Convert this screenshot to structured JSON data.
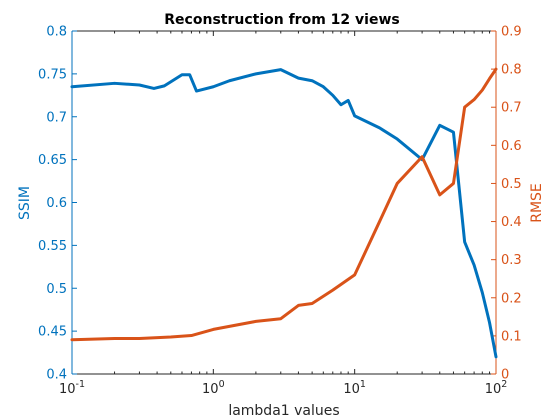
{
  "chart_data": {
    "type": "line",
    "title": "Reconstruction from 12 views",
    "xlabel": "lambda1 values",
    "x_scale": "log",
    "xlim": [
      0.1,
      100
    ],
    "x_ticks": [
      {
        "value": 0.1,
        "base": "10",
        "exp": "-1"
      },
      {
        "value": 1,
        "base": "10",
        "exp": "0"
      },
      {
        "value": 10,
        "base": "10",
        "exp": "1"
      },
      {
        "value": 100,
        "base": "10",
        "exp": "2"
      }
    ],
    "y_left": {
      "label": "SSIM",
      "lim": [
        0.4,
        0.8
      ],
      "ticks": [
        "0.4",
        "0.45",
        "0.5",
        "0.55",
        "0.6",
        "0.65",
        "0.7",
        "0.75",
        "0.8"
      ],
      "color": "#0072BD"
    },
    "y_right": {
      "label": "RMSE",
      "lim": [
        0,
        0.9
      ],
      "ticks": [
        "0",
        "0.1",
        "0.2",
        "0.3",
        "0.4",
        "0.5",
        "0.6",
        "0.7",
        "0.8",
        "0.9"
      ],
      "color": "#D95319"
    },
    "series": [
      {
        "axis": "left",
        "color": "#0072BD",
        "points": [
          [
            0.1,
            0.735
          ],
          [
            0.2,
            0.739
          ],
          [
            0.3,
            0.737
          ],
          [
            0.38,
            0.733
          ],
          [
            0.45,
            0.736
          ],
          [
            0.55,
            0.745
          ],
          [
            0.6,
            0.749
          ],
          [
            0.68,
            0.749
          ],
          [
            0.76,
            0.73
          ],
          [
            1.0,
            0.735
          ],
          [
            1.3,
            0.742
          ],
          [
            2.0,
            0.75
          ],
          [
            3.0,
            0.755
          ],
          [
            4.0,
            0.745
          ],
          [
            5.0,
            0.742
          ],
          [
            6.0,
            0.735
          ],
          [
            7.0,
            0.725
          ],
          [
            8.0,
            0.714
          ],
          [
            9.0,
            0.719
          ],
          [
            10.0,
            0.701
          ],
          [
            15.0,
            0.687
          ],
          [
            20.0,
            0.674
          ],
          [
            30.0,
            0.65
          ],
          [
            40.0,
            0.69
          ],
          [
            50.0,
            0.682
          ],
          [
            60.0,
            0.554
          ],
          [
            70.0,
            0.527
          ],
          [
            80.0,
            0.495
          ],
          [
            90.0,
            0.46
          ],
          [
            100.0,
            0.42
          ]
        ]
      },
      {
        "axis": "right",
        "color": "#D95319",
        "points": [
          [
            0.1,
            0.09
          ],
          [
            0.2,
            0.093
          ],
          [
            0.3,
            0.093
          ],
          [
            0.5,
            0.097
          ],
          [
            0.7,
            0.101
          ],
          [
            1.0,
            0.117
          ],
          [
            2.0,
            0.138
          ],
          [
            3.0,
            0.145
          ],
          [
            4.0,
            0.18
          ],
          [
            5.0,
            0.185
          ],
          [
            7.0,
            0.22
          ],
          [
            10.0,
            0.26
          ],
          [
            15.0,
            0.4
          ],
          [
            20.0,
            0.5
          ],
          [
            30.0,
            0.57
          ],
          [
            40.0,
            0.47
          ],
          [
            50.0,
            0.5
          ],
          [
            60.0,
            0.7
          ],
          [
            70.0,
            0.72
          ],
          [
            80.0,
            0.745
          ],
          [
            90.0,
            0.775
          ],
          [
            100.0,
            0.8
          ]
        ]
      }
    ],
    "grid": false,
    "legend": "none"
  }
}
